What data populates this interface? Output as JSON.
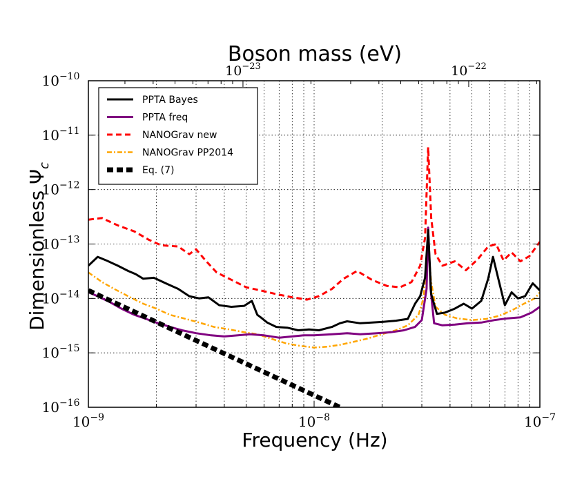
{
  "chart_data": {
    "type": "line",
    "title": "Boson mass (eV)",
    "xlabel": "Frequency (Hz)",
    "ylabel": "Dimensionless Ψ",
    "ylabel_subscript": "c",
    "xscale": "log",
    "yscale": "log",
    "xlim": [
      1e-09,
      1e-07
    ],
    "ylim": [
      1e-16,
      1e-10
    ],
    "grid": true,
    "legend_position": "upper-left",
    "x_ticks": [
      {
        "value": 1e-09,
        "base": "10",
        "exp": "−9"
      },
      {
        "value": 1e-08,
        "base": "10",
        "exp": "−8"
      },
      {
        "value": 1e-07,
        "base": "10",
        "exp": "−7"
      }
    ],
    "y_ticks": [
      {
        "value": 1e-16,
        "base": "10",
        "exp": "−16"
      },
      {
        "value": 1e-15,
        "base": "10",
        "exp": "−15"
      },
      {
        "value": 1e-14,
        "base": "10",
        "exp": "−14"
      },
      {
        "value": 1e-13,
        "base": "10",
        "exp": "−13"
      },
      {
        "value": 1e-12,
        "base": "10",
        "exp": "−12"
      },
      {
        "value": 1e-11,
        "base": "10",
        "exp": "−11"
      },
      {
        "value": 1e-10,
        "base": "10",
        "exp": "−10"
      }
    ],
    "top_axis": {
      "label": "Boson mass (eV)",
      "ticks": [
        {
          "value": 1e-23,
          "frequency": 4.84e-09,
          "base": "10",
          "exp": "−23"
        },
        {
          "value": 1e-22,
          "frequency": 4.84e-08,
          "base": "10",
          "exp": "−22"
        }
      ]
    },
    "series": [
      {
        "name": "PPTA Bayes",
        "color": "#000000",
        "style": "solid",
        "x": [
          1e-09,
          1.1e-09,
          1.2e-09,
          1.35e-09,
          1.5e-09,
          1.62e-09,
          1.75e-09,
          1.95e-09,
          2.2e-09,
          2.5e-09,
          2.8e-09,
          3.1e-09,
          3.4e-09,
          3.8e-09,
          4.3e-09,
          4.9e-09,
          5.3e-09,
          5.6e-09,
          5.8e-09,
          6.2e-09,
          6.8e-09,
          7.6e-09,
          8.5e-09,
          9.5e-09,
          1.05e-08,
          1.2e-08,
          1.3e-08,
          1.4e-08,
          1.6e-08,
          1.8e-08,
          2e-08,
          2.3e-08,
          2.6e-08,
          2.8e-08,
          2.95e-08,
          3.1e-08,
          3.2e-08,
          3.3e-08,
          3.5e-08,
          3.8e-08,
          4.2e-08,
          4.6e-08,
          5e-08,
          5.5e-08,
          5.9e-08,
          6.2e-08,
          6.6e-08,
          7e-08,
          7.5e-08,
          8e-08,
          8.6e-08,
          9.3e-08,
          1e-07
        ],
        "y": [
          4e-14,
          5.8e-14,
          5e-14,
          4e-14,
          3.2e-14,
          2.8e-14,
          2.3e-14,
          2.4e-14,
          1.9e-14,
          1.5e-14,
          1.1e-14,
          1e-14,
          1.05e-14,
          7.5e-15,
          7e-15,
          7.3e-15,
          9e-15,
          5e-15,
          4.5e-15,
          3.6e-15,
          3e-15,
          2.9e-15,
          2.6e-15,
          2.7e-15,
          2.6e-15,
          3e-15,
          3.5e-15,
          3.8e-15,
          3.5e-15,
          3.6e-15,
          3.7e-15,
          3.9e-15,
          4.2e-15,
          8e-15,
          1.1e-14,
          2.4e-14,
          1.8e-13,
          1.2e-14,
          5.2e-15,
          5.5e-15,
          6.5e-15,
          8e-15,
          6.5e-15,
          9e-15,
          2.3e-14,
          5.8e-14,
          2e-14,
          7.5e-15,
          1.3e-14,
          1e-14,
          1.1e-14,
          1.9e-14,
          1.4e-14
        ]
      },
      {
        "name": "PPTA freq",
        "color": "#800080",
        "style": "solid",
        "x": [
          1e-09,
          1.1e-09,
          1.25e-09,
          1.4e-09,
          1.6e-09,
          1.8e-09,
          2e-09,
          2.3e-09,
          2.6e-09,
          3e-09,
          3.5e-09,
          4e-09,
          4.6e-09,
          5.2e-09,
          6e-09,
          7e-09,
          8e-09,
          9e-09,
          1e-08,
          1.2e-08,
          1.4e-08,
          1.6e-08,
          1.9e-08,
          2.2e-08,
          2.5e-08,
          2.8e-08,
          3e-08,
          3.15e-08,
          3.2e-08,
          3.28e-08,
          3.4e-08,
          3.7e-08,
          4.2e-08,
          4.8e-08,
          5.5e-08,
          6.3e-08,
          7.2e-08,
          8.2e-08,
          9.2e-08,
          1e-07
        ],
        "y": [
          1.3e-14,
          1.1e-14,
          8.5e-15,
          6.5e-15,
          5e-15,
          4.2e-15,
          3.6e-15,
          3e-15,
          2.6e-15,
          2.3e-15,
          2.1e-15,
          2e-15,
          2.1e-15,
          2.2e-15,
          2.1e-15,
          1.9e-15,
          2e-15,
          2.1e-15,
          2.1e-15,
          2.2e-15,
          2.3e-15,
          2.2e-15,
          2.3e-15,
          2.4e-15,
          2.6e-15,
          3e-15,
          4e-15,
          1.5e-14,
          2e-13,
          1.5e-14,
          3.5e-15,
          3.2e-15,
          3.3e-15,
          3.5e-15,
          3.6e-15,
          4e-15,
          4.3e-15,
          4.5e-15,
          5.5e-15,
          7e-15
        ]
      },
      {
        "name": "NANOGrav new",
        "color": "#ff0000",
        "style": "dashed",
        "x": [
          1e-09,
          1.15e-09,
          1.35e-09,
          1.6e-09,
          1.85e-09,
          2.1e-09,
          2.5e-09,
          2.8e-09,
          3e-09,
          3.3e-09,
          3.7e-09,
          4.3e-09,
          5e-09,
          5.8e-09,
          6.8e-09,
          8e-09,
          9.3e-09,
          1.05e-08,
          1.2e-08,
          1.35e-08,
          1.55e-08,
          1.8e-08,
          2.1e-08,
          2.4e-08,
          2.7e-08,
          2.95e-08,
          3.1e-08,
          3.2e-08,
          3.3e-08,
          3.45e-08,
          3.7e-08,
          4.2e-08,
          4.7e-08,
          5.3e-08,
          5.9e-08,
          6.4e-08,
          6.9e-08,
          7.5e-08,
          8.2e-08,
          9e-08,
          1e-07
        ],
        "y": [
          2.8e-13,
          3e-13,
          2.2e-13,
          1.7e-13,
          1.2e-13,
          9.5e-14,
          9e-14,
          6.5e-14,
          8e-14,
          5e-14,
          3e-14,
          2.2e-14,
          1.6e-14,
          1.4e-14,
          1.2e-14,
          1.05e-14,
          9.5e-15,
          1.1e-14,
          1.5e-14,
          2.3e-14,
          3.2e-14,
          2.2e-14,
          1.7e-14,
          1.6e-14,
          2e-14,
          4e-14,
          1.3e-13,
          6e-12,
          3e-13,
          6.5e-14,
          4e-14,
          4.8e-14,
          3.3e-14,
          5.2e-14,
          9e-14,
          1e-13,
          5e-14,
          7e-14,
          4.8e-14,
          6e-14,
          1.1e-13
        ]
      },
      {
        "name": "NANOGrav PP2014",
        "color": "#ffa500",
        "style": "dashdot",
        "x": [
          1e-09,
          1.15e-09,
          1.3e-09,
          1.5e-09,
          1.75e-09,
          2e-09,
          2.3e-09,
          2.7e-09,
          3.1e-09,
          3.6e-09,
          4.2e-09,
          4.9e-09,
          5.6e-09,
          6.5e-09,
          7.5e-09,
          8.6e-09,
          1e-08,
          1.15e-08,
          1.3e-08,
          1.5e-08,
          1.7e-08,
          2e-08,
          2.3e-08,
          2.6e-08,
          2.9e-08,
          3.05e-08,
          3.2e-08,
          3.3e-08,
          3.45e-08,
          3.8e-08,
          4.3e-08,
          5e-08,
          5.8e-08,
          6.6e-08,
          7.5e-08,
          8.5e-08,
          9.5e-08,
          1e-07
        ],
        "y": [
          3e-14,
          2e-14,
          1.5e-14,
          1.1e-14,
          8e-15,
          6.5e-15,
          5e-15,
          4.2e-15,
          3.6e-15,
          3e-15,
          2.7e-15,
          2.4e-15,
          2.2e-15,
          1.8e-15,
          1.5e-15,
          1.35e-15,
          1.25e-15,
          1.3e-15,
          1.4e-15,
          1.6e-15,
          1.8e-15,
          2.2e-15,
          2.6e-15,
          3.2e-15,
          5e-15,
          1e-14,
          1e-13,
          2e-14,
          7e-15,
          5e-15,
          4.3e-15,
          4e-15,
          4.2e-15,
          4.8e-15,
          6e-15,
          8e-15,
          1e-14,
          1.3e-14
        ]
      },
      {
        "name": "Eq. (7)",
        "color": "#000000",
        "style": "thick-dashed",
        "x": [
          1e-09,
          1.3e-08
        ],
        "y": [
          1.4e-14,
          1e-16
        ]
      }
    ]
  }
}
